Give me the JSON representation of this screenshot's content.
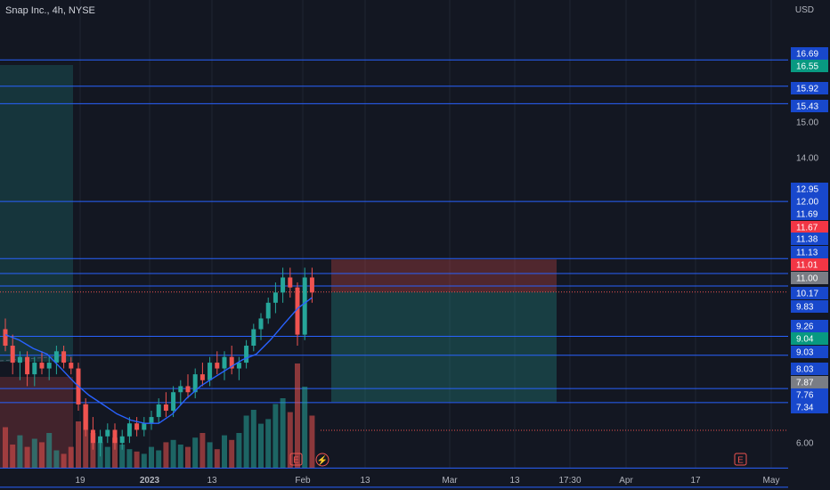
{
  "header": {
    "title": "Snap Inc., 4h, NYSE",
    "currency": "USD"
  },
  "colors": {
    "background": "#131722",
    "grid": "#1f2433",
    "up": "#26a69a",
    "down": "#ef5350",
    "level_line": "#2962ff",
    "ma_line": "#2962ff",
    "axis_text": "#b2b5be"
  },
  "chart_data": {
    "type": "candlestick",
    "title": "Snap Inc., 4h, NYSE",
    "currency": "USD",
    "y_axis": {
      "scale": "log",
      "ticks": [
        6.0,
        7.76,
        9.03,
        11.0,
        12.0,
        14.0,
        15.0,
        16.55
      ]
    },
    "x_axis": {
      "ticks": [
        "19",
        "2023",
        "13",
        "Feb",
        "13",
        "Mar",
        "13",
        "17:30",
        "Apr",
        "17",
        "May"
      ]
    },
    "grid": true,
    "price_levels": [
      16.69,
      15.92,
      15.43,
      12.95,
      11.69,
      11.38,
      11.13,
      10.17,
      9.83,
      9.26,
      9.03,
      8.03,
      7.76,
      7.34
    ],
    "price_labels": [
      {
        "value": "16.69",
        "kind": "level"
      },
      {
        "value": "16.55",
        "kind": "up"
      },
      {
        "value": "15.92",
        "kind": "level"
      },
      {
        "value": "15.43",
        "kind": "level"
      },
      {
        "value": "15.00",
        "kind": "tick"
      },
      {
        "value": "14.00",
        "kind": "tick"
      },
      {
        "value": "12.95",
        "kind": "level"
      },
      {
        "value": "12.00",
        "kind": "level"
      },
      {
        "value": "11.69",
        "kind": "level"
      },
      {
        "value": "11.67",
        "kind": "down"
      },
      {
        "value": "11.38",
        "kind": "level"
      },
      {
        "value": "11.13",
        "kind": "level"
      },
      {
        "value": "11.01",
        "kind": "down"
      },
      {
        "value": "11.00",
        "kind": "gray"
      },
      {
        "value": "10.17",
        "kind": "level"
      },
      {
        "value": "9.83",
        "kind": "level"
      },
      {
        "value": "9.26",
        "kind": "level"
      },
      {
        "value": "9.04",
        "kind": "up"
      },
      {
        "value": "9.03",
        "kind": "level"
      },
      {
        "value": "8.03",
        "kind": "level"
      },
      {
        "value": "7.87",
        "kind": "gray"
      },
      {
        "value": "7.76",
        "kind": "level"
      },
      {
        "value": "7.34",
        "kind": "level"
      },
      {
        "value": "6.00",
        "kind": "tick"
      }
    ],
    "last_price": 11.01,
    "position_zone": {
      "entry": 11.01,
      "stop": 11.67,
      "target": 9.04
    },
    "earnings_markers": [
      "E",
      "E"
    ],
    "series": [
      {
        "name": "",
        "type": "line",
        "values": [
          10.2,
          10.1,
          9.95,
          9.85,
          9.6,
          9.35,
          9.15,
          9.0,
          8.85,
          8.75,
          8.7,
          8.7,
          8.85,
          9.1,
          9.3,
          9.45,
          9.6,
          9.75,
          9.85,
          10.1,
          10.4,
          10.7,
          10.9
        ]
      }
    ],
    "candles": [
      [
        10.3,
        10.5,
        9.9,
        10.0
      ],
      [
        10.0,
        10.2,
        9.5,
        9.7
      ],
      [
        9.7,
        9.9,
        9.4,
        9.8
      ],
      [
        9.8,
        9.9,
        9.3,
        9.5
      ],
      [
        9.5,
        9.8,
        9.3,
        9.7
      ],
      [
        9.7,
        9.9,
        9.5,
        9.6
      ],
      [
        9.6,
        9.8,
        9.4,
        9.7
      ],
      [
        9.7,
        10.0,
        9.5,
        9.9
      ],
      [
        9.9,
        10.0,
        9.6,
        9.7
      ],
      [
        9.7,
        9.8,
        9.5,
        9.6
      ],
      [
        9.6,
        9.7,
        8.9,
        9.0
      ],
      [
        9.0,
        9.1,
        8.5,
        8.6
      ],
      [
        8.6,
        8.8,
        8.3,
        8.4
      ],
      [
        8.4,
        8.6,
        8.2,
        8.5
      ],
      [
        8.5,
        8.7,
        8.4,
        8.6
      ],
      [
        8.6,
        8.7,
        8.3,
        8.4
      ],
      [
        8.4,
        8.6,
        8.3,
        8.5
      ],
      [
        8.5,
        8.8,
        8.4,
        8.7
      ],
      [
        8.7,
        8.8,
        8.5,
        8.6
      ],
      [
        8.6,
        8.8,
        8.5,
        8.7
      ],
      [
        8.7,
        8.9,
        8.6,
        8.8
      ],
      [
        8.8,
        9.1,
        8.7,
        9.0
      ],
      [
        9.0,
        9.2,
        8.8,
        8.9
      ],
      [
        8.9,
        9.3,
        8.8,
        9.2
      ],
      [
        9.2,
        9.4,
        9.0,
        9.3
      ],
      [
        9.3,
        9.5,
        9.1,
        9.2
      ],
      [
        9.2,
        9.6,
        9.1,
        9.5
      ],
      [
        9.5,
        9.7,
        9.3,
        9.4
      ],
      [
        9.4,
        9.8,
        9.3,
        9.7
      ],
      [
        9.7,
        9.9,
        9.5,
        9.6
      ],
      [
        9.6,
        9.9,
        9.4,
        9.8
      ],
      [
        9.8,
        10.0,
        9.5,
        9.6
      ],
      [
        9.6,
        9.8,
        9.4,
        9.7
      ],
      [
        9.7,
        10.1,
        9.6,
        10.0
      ],
      [
        10.0,
        10.4,
        9.9,
        10.3
      ],
      [
        10.3,
        10.6,
        10.1,
        10.5
      ],
      [
        10.5,
        10.9,
        10.4,
        10.8
      ],
      [
        10.8,
        11.2,
        10.6,
        11.0
      ],
      [
        11.0,
        11.5,
        10.8,
        11.3
      ],
      [
        11.3,
        11.5,
        10.9,
        11.1
      ],
      [
        11.1,
        11.2,
        10.0,
        10.2
      ],
      [
        10.2,
        11.5,
        10.1,
        11.3
      ],
      [
        11.3,
        11.5,
        10.8,
        11.0
      ]
    ],
    "volume": [
      35,
      20,
      28,
      18,
      25,
      22,
      30,
      15,
      12,
      18,
      40,
      55,
      30,
      22,
      18,
      26,
      20,
      16,
      14,
      12,
      18,
      15,
      22,
      24,
      20,
      18,
      26,
      30,
      22,
      16,
      28,
      24,
      30,
      45,
      50,
      38,
      42,
      55,
      60,
      48,
      90,
      70,
      45
    ]
  }
}
